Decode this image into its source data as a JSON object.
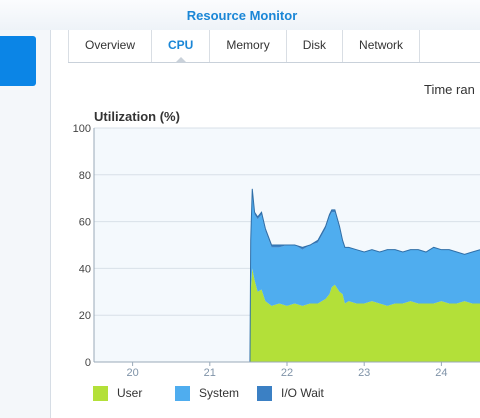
{
  "app": {
    "title": "Resource Monitor"
  },
  "tabs": [
    {
      "label": "Overview",
      "active": false
    },
    {
      "label": "CPU",
      "active": true
    },
    {
      "label": "Memory",
      "active": false
    },
    {
      "label": "Disk",
      "active": false
    },
    {
      "label": "Network",
      "active": false
    }
  ],
  "toolbar": {
    "time_range_label": "Time ran"
  },
  "colors": {
    "accent": "#1a86d6",
    "user": "#b3e039",
    "system": "#4fadef",
    "io_wait": "#3b80c4",
    "plot_bg": "#f4f9fd",
    "grid": "#d8e0e8"
  },
  "chart_data": {
    "type": "area",
    "stacked": true,
    "title": "Utilization (%)",
    "xlabel": "",
    "ylabel": "",
    "ylim": [
      0,
      100
    ],
    "yticks": [
      0,
      20,
      40,
      60,
      80,
      100
    ],
    "xlim": [
      19.5,
      24.5
    ],
    "xticks": [
      20,
      21,
      22,
      23,
      24
    ],
    "grid": true,
    "legend_position": "bottom-left",
    "x": [
      19.5,
      20.0,
      20.5,
      21.0,
      21.5,
      21.52,
      21.53,
      21.55,
      21.58,
      21.62,
      21.67,
      21.72,
      21.8,
      21.9,
      22.0,
      22.1,
      22.2,
      22.3,
      22.4,
      22.5,
      22.55,
      22.58,
      22.62,
      22.68,
      22.72,
      22.75,
      22.8,
      22.9,
      23.0,
      23.1,
      23.2,
      23.3,
      23.4,
      23.5,
      23.6,
      23.7,
      23.8,
      23.9,
      24.0,
      24.1,
      24.2,
      24.3,
      24.4,
      24.5
    ],
    "series": [
      {
        "name": "User",
        "values": [
          0,
          0,
          0,
          0,
          0,
          0,
          30,
          40,
          35,
          30,
          31,
          26,
          24,
          25,
          24,
          25,
          24,
          25,
          25,
          27,
          29,
          32,
          33,
          30,
          29,
          25,
          26,
          25,
          25,
          26,
          25,
          24,
          25,
          25,
          26,
          25,
          25,
          25,
          26,
          25,
          25,
          26,
          25,
          25
        ]
      },
      {
        "name": "System",
        "values": [
          0,
          0,
          0,
          0,
          0,
          0,
          22,
          33,
          28,
          31,
          32,
          30,
          25,
          24,
          26,
          25,
          24,
          25,
          26,
          30,
          33,
          32,
          31,
          27,
          22,
          24,
          23,
          23,
          22,
          22,
          22,
          24,
          23,
          22,
          22,
          23,
          22,
          24,
          22,
          23,
          22,
          20,
          22,
          23
        ]
      },
      {
        "name": "I/O Wait",
        "values": [
          0,
          0,
          0,
          0,
          0,
          0,
          0,
          1,
          1,
          1,
          1,
          1,
          1,
          1,
          0,
          0,
          1,
          0,
          1,
          1,
          1,
          1,
          1,
          1,
          1,
          0,
          0,
          0,
          0,
          0,
          0,
          0,
          0,
          0,
          0,
          0,
          0,
          0,
          0,
          0,
          0,
          0,
          0,
          0
        ]
      }
    ]
  }
}
